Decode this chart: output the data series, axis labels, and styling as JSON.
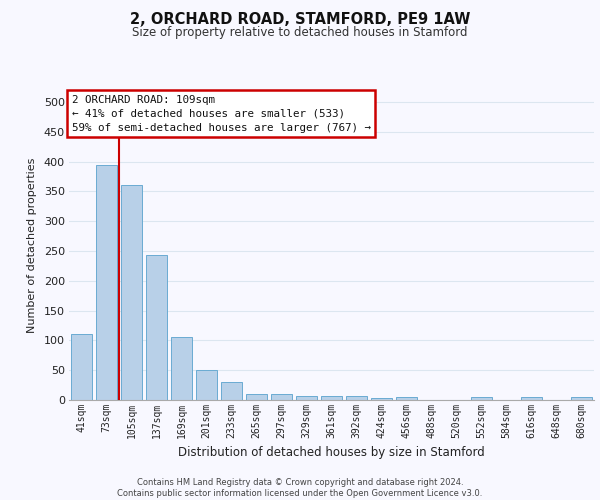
{
  "title1": "2, ORCHARD ROAD, STAMFORD, PE9 1AW",
  "title2": "Size of property relative to detached houses in Stamford",
  "xlabel": "Distribution of detached houses by size in Stamford",
  "ylabel": "Number of detached properties",
  "categories": [
    "41sqm",
    "73sqm",
    "105sqm",
    "137sqm",
    "169sqm",
    "201sqm",
    "233sqm",
    "265sqm",
    "297sqm",
    "329sqm",
    "361sqm",
    "392sqm",
    "424sqm",
    "456sqm",
    "488sqm",
    "520sqm",
    "552sqm",
    "584sqm",
    "616sqm",
    "648sqm",
    "680sqm"
  ],
  "values": [
    110,
    395,
    360,
    243,
    105,
    50,
    30,
    10,
    10,
    6,
    6,
    7,
    3,
    5,
    0,
    0,
    5,
    0,
    5,
    0,
    5
  ],
  "bar_color": "#b8d0e8",
  "bar_edgecolor": "#6aabd2",
  "grid_color": "#dce6f0",
  "background_color": "#f8f8ff",
  "annotation_line1": "2 ORCHARD ROAD: 109sqm",
  "annotation_line2": "← 41% of detached houses are smaller (533)",
  "annotation_line3": "59% of semi-detached houses are larger (767) →",
  "vline_x": 1.5,
  "vline_color": "#cc0000",
  "annotation_box_facecolor": "#ffffff",
  "annotation_box_edgecolor": "#cc0000",
  "footer_text1": "Contains HM Land Registry data © Crown copyright and database right 2024.",
  "footer_text2": "Contains public sector information licensed under the Open Government Licence v3.0.",
  "ylim": [
    0,
    520
  ],
  "yticks": [
    0,
    50,
    100,
    150,
    200,
    250,
    300,
    350,
    400,
    450,
    500
  ]
}
